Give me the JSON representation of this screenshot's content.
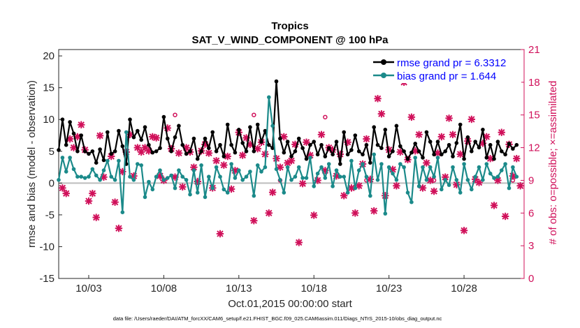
{
  "chart_data": {
    "type": "line",
    "title": "Tropics",
    "subtitle": "SAT_V_WIND_COMPONENT @ 100 hPa",
    "ylabel": "rmse and bias (model - observation)",
    "ylabel_right": "# of obs: o=possible; ×=assimilated",
    "xlabel": "Oct.01,2015 00:00:00 start",
    "ylim": [
      -15,
      21
    ],
    "ylim_right": [
      0,
      21
    ],
    "xlim": [
      1.0,
      32.0
    ],
    "yticks": [
      -15,
      -10,
      -5,
      0,
      5,
      10,
      15,
      20
    ],
    "yticks_right": [
      0,
      3,
      6,
      9,
      12,
      15,
      18,
      21
    ],
    "xticks": [
      3,
      8,
      13,
      18,
      23,
      28
    ],
    "xtick_labels": [
      "10/03",
      "10/08",
      "10/13",
      "10/18",
      "10/23",
      "10/28"
    ],
    "x_step_days": 0.25,
    "x_start": 1.0,
    "legend": {
      "position": "top-right",
      "entries": [
        "rmse grand pr = 6.3312",
        "bias grand pr = 1.644"
      ]
    },
    "series": [
      {
        "name": "rmse grand pr = 6.3312",
        "color": "#000000",
        "values": [
          5.2,
          10.0,
          6.0,
          9.6,
          7.8,
          5.0,
          7.5,
          5.0,
          4.6,
          5.0,
          3.2,
          5.3,
          3.6,
          8.0,
          4.6,
          5.0,
          8.2,
          5.8,
          3.0,
          10.0,
          7.2,
          8.2,
          6.8,
          8.8,
          6.0,
          4.8,
          5.0,
          5.5,
          10.4,
          7.0,
          5.0,
          7.2,
          9.0,
          6.0,
          4.6,
          5.0,
          7.0,
          3.8,
          5.0,
          7.0,
          5.5,
          8.0,
          5.0,
          6.0,
          4.2,
          9.2,
          6.0,
          4.8,
          8.4,
          6.3,
          5.0,
          8.8,
          5.0,
          9.2,
          6.5,
          8.2,
          6.0,
          5.5,
          16.0,
          7.0,
          4.8,
          6.5,
          4.2,
          5.0,
          7.0,
          5.5,
          3.8,
          6.0,
          6.5,
          4.5,
          6.0,
          4.2,
          5.5,
          4.5,
          6.5,
          3.0,
          8.0,
          4.5,
          5.2,
          7.5,
          5.0,
          4.5,
          6.0,
          3.2,
          8.8,
          6.0,
          5.5,
          8.4,
          4.2,
          5.0,
          9.0,
          5.8,
          5.0,
          3.8,
          4.8,
          6.2,
          5.0,
          4.0,
          8.0,
          6.5,
          4.5,
          6.5,
          4.5,
          5.0,
          6.0,
          4.2,
          6.3,
          9.2,
          3.8,
          7.2,
          5.0,
          6.5,
          5.6,
          8.4,
          4.0,
          6.0,
          3.8,
          6.5,
          5.0,
          4.5,
          6.2,
          5.4,
          6.0
        ],
        "y_axis": "left"
      },
      {
        "name": "bias grand pr = 1.644",
        "color": "#1b8a8a",
        "values": [
          0.5,
          4.0,
          1.8,
          4.0,
          2.2,
          1.0,
          1.0,
          0.8,
          1.0,
          2.2,
          1.2,
          0.5,
          2.0,
          3.5,
          1.0,
          0.5,
          3.5,
          -4.6,
          8.0,
          1.0,
          0.5,
          3.0,
          2.8,
          -2.2,
          0.2,
          -1.0,
          1.0,
          2.0,
          0.5,
          0.8,
          1.2,
          -0.8,
          2.0,
          1.0,
          0.5,
          -1.8,
          2.0,
          -1.5,
          2.8,
          -2.2,
          1.0,
          -0.8,
          2.5,
          1.0,
          -1.0,
          -1.5,
          3.0,
          0.8,
          2.0,
          0.5,
          1.0,
          1.8,
          -2.0,
          2.8,
          1.8,
          2.5,
          13.5,
          9.0,
          2.2,
          0.5,
          -1.5,
          2.5,
          0.5,
          1.0,
          2.5,
          0.8,
          0.8,
          4.0,
          -0.5,
          1.5,
          2.5,
          0.8,
          3.0,
          -0.5,
          2.0,
          1.0,
          1.0,
          -1.5,
          3.5,
          -0.8,
          2.0,
          3.0,
          1.0,
          -2.0,
          4.5,
          0.5,
          3.0,
          -4.8,
          2.5,
          1.5,
          0.5,
          3.0,
          2.5,
          -1.5,
          -3.0,
          4.0,
          -0.5,
          2.5,
          0.5,
          2.5,
          1.0,
          4.0,
          -1.0,
          0.5,
          -0.3,
          2.5,
          0.5,
          -1.5,
          3.0,
          0.5,
          -1.0,
          1.0,
          2.5,
          0.5,
          3.0,
          1.5,
          0.8,
          1.0,
          2.0,
          3.0,
          -0.8,
          2.5,
          1.0
        ],
        "y_axis": "left"
      }
    ],
    "obs_assimilated": {
      "name": "# assimilated (×)",
      "color": "#d0105a",
      "y_axis": "right",
      "points": [
        [
          1.25,
          8.3
        ],
        [
          1.5,
          7.8
        ],
        [
          1.75,
          12.8
        ],
        [
          2.0,
          12.0
        ],
        [
          2.25,
          13.0
        ],
        [
          2.5,
          14.1
        ],
        [
          2.75,
          11.8
        ],
        [
          3.0,
          7.1
        ],
        [
          3.25,
          7.8
        ],
        [
          3.5,
          5.6
        ],
        [
          3.75,
          13.1
        ],
        [
          4.0,
          9.3
        ],
        [
          4.5,
          11.2
        ],
        [
          4.75,
          7.0
        ],
        [
          5.0,
          4.6
        ],
        [
          5.25,
          9.8
        ],
        [
          5.5,
          11.6
        ],
        [
          5.75,
          13.2
        ],
        [
          6.0,
          9.4
        ],
        [
          6.25,
          12.0
        ],
        [
          6.5,
          11.6
        ],
        [
          6.75,
          12.0
        ],
        [
          7.0,
          11.7
        ],
        [
          7.25,
          13.0
        ],
        [
          7.5,
          12.9
        ],
        [
          7.75,
          9.4
        ],
        [
          8.0,
          9.0
        ],
        [
          8.25,
          13.8
        ],
        [
          8.5,
          11.9
        ],
        [
          8.75,
          9.3
        ],
        [
          9.0,
          11.5
        ],
        [
          9.25,
          8.4
        ],
        [
          9.5,
          12.0
        ],
        [
          9.75,
          11.6
        ],
        [
          10.0,
          10.2
        ],
        [
          10.25,
          8.9
        ],
        [
          10.5,
          11.7
        ],
        [
          10.75,
          12.3
        ],
        [
          11.0,
          11.5
        ],
        [
          11.25,
          8.3
        ],
        [
          11.5,
          10.8
        ],
        [
          11.75,
          4.1
        ],
        [
          12.0,
          10.4
        ],
        [
          12.25,
          11.2
        ],
        [
          12.5,
          8.2
        ],
        [
          12.75,
          9.9
        ],
        [
          13.0,
          13.4
        ],
        [
          13.25,
          11.3
        ],
        [
          13.5,
          12.9
        ],
        [
          13.75,
          12.3
        ],
        [
          14.0,
          5.3
        ],
        [
          14.25,
          11.9
        ],
        [
          14.5,
          12.5
        ],
        [
          14.75,
          11.4
        ],
        [
          15.0,
          6.0
        ],
        [
          15.25,
          7.9
        ],
        [
          15.5,
          11.0
        ],
        [
          15.75,
          10.2
        ],
        [
          16.0,
          13.0
        ],
        [
          16.25,
          10.6
        ],
        [
          16.5,
          10.8
        ],
        [
          16.75,
          12.3
        ],
        [
          17.0,
          3.3
        ],
        [
          17.25,
          8.7
        ],
        [
          17.5,
          12.5
        ],
        [
          17.75,
          11.3
        ],
        [
          18.0,
          5.8
        ],
        [
          18.25,
          9.0
        ],
        [
          18.5,
          13.2
        ],
        [
          18.75,
          9.9
        ],
        [
          19.0,
          12.0
        ],
        [
          19.25,
          11.8
        ],
        [
          19.5,
          9.4
        ],
        [
          19.75,
          11.4
        ],
        [
          20.0,
          7.6
        ],
        [
          20.25,
          12.5
        ],
        [
          20.5,
          8.3
        ],
        [
          20.75,
          6.0
        ],
        [
          21.0,
          8.5
        ],
        [
          21.25,
          10.5
        ],
        [
          21.5,
          12.8
        ],
        [
          21.75,
          9.1
        ],
        [
          22.0,
          6.2
        ],
        [
          22.25,
          16.5
        ],
        [
          22.5,
          15.1
        ],
        [
          22.75,
          7.6
        ],
        [
          23.0,
          11.8
        ],
        [
          23.25,
          10.0
        ],
        [
          23.5,
          8.5
        ],
        [
          23.75,
          11.6
        ],
        [
          24.0,
          18.0
        ],
        [
          24.25,
          10.9
        ],
        [
          24.5,
          14.8
        ],
        [
          24.75,
          11.7
        ],
        [
          25.0,
          13.2
        ],
        [
          25.25,
          8.3
        ],
        [
          25.5,
          10.6
        ],
        [
          25.75,
          9.0
        ],
        [
          26.0,
          8.0
        ],
        [
          26.25,
          11.5
        ],
        [
          26.5,
          13.0
        ],
        [
          26.75,
          9.3
        ],
        [
          27.0,
          14.7
        ],
        [
          27.25,
          13.2
        ],
        [
          27.5,
          8.6
        ],
        [
          27.75,
          11.4
        ],
        [
          28.0,
          4.4
        ],
        [
          28.25,
          12.6
        ],
        [
          28.5,
          14.6
        ],
        [
          28.75,
          9.1
        ],
        [
          29.0,
          8.8
        ],
        [
          29.25,
          12.4
        ],
        [
          29.5,
          13.0
        ],
        [
          29.75,
          11.0
        ],
        [
          30.0,
          6.7
        ],
        [
          30.25,
          9.0
        ],
        [
          30.5,
          13.4
        ],
        [
          30.75,
          5.7
        ],
        [
          31.0,
          12.3
        ],
        [
          31.25,
          9.4
        ],
        [
          31.5,
          11.0
        ],
        [
          31.75,
          8.5
        ]
      ]
    },
    "obs_possible": {
      "name": "# possible (o)",
      "color": "#d0105a",
      "y_axis": "right",
      "points": [
        [
          8.75,
          15.0
        ],
        [
          14.0,
          15.0
        ],
        [
          15.75,
          9.0
        ],
        [
          18.75,
          14.8
        ],
        [
          21.5,
          9.0
        ],
        [
          26.0,
          9.0
        ],
        [
          31.25,
          9.0
        ]
      ]
    },
    "footnote": "data file: /Users/raeder/DAI/ATM_forcXX/CAM6_setup/f.e21.FHIST_BGC.f09_025.CAM6assim.011/Diags_NTrS_2015-10/obs_diag_output.nc"
  }
}
